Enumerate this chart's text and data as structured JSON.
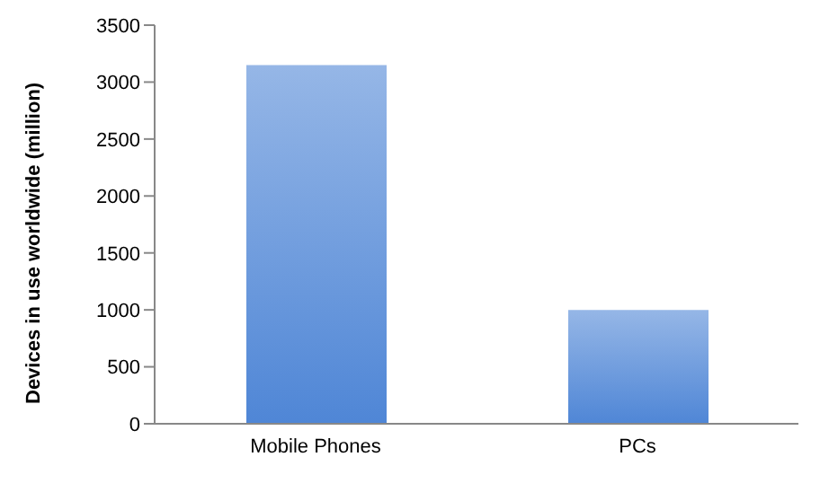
{
  "chart_data": {
    "type": "bar",
    "ylabel": "Devices in use worldwide (million)",
    "categories": [
      "Mobile Phones",
      "PCs"
    ],
    "series": [
      {
        "color": "#4f86d6",
        "values": [
          3150,
          1000
        ]
      }
    ],
    "ylim": [
      0,
      3500
    ],
    "yticks": [
      0,
      500,
      1000,
      1500,
      2000,
      2500,
      3000,
      3500
    ],
    "grid": false,
    "legend": false
  }
}
